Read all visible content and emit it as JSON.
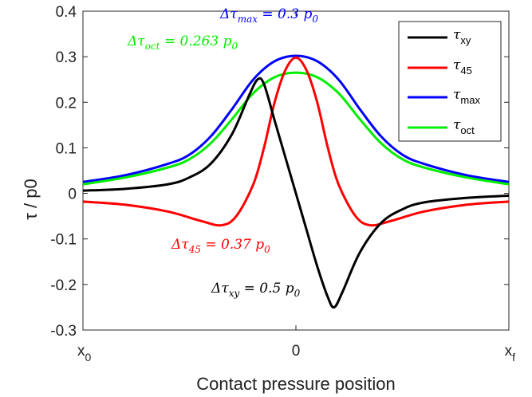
{
  "chart_data": {
    "type": "line",
    "xlabel": "Contact pressure position",
    "ylabel": "τ / p0",
    "x_ticks": [
      {
        "x": -1,
        "label": "x",
        "sub": "0"
      },
      {
        "x": 0,
        "label": "0",
        "sub": ""
      },
      {
        "x": 1,
        "label": "x",
        "sub": "f"
      }
    ],
    "xlim": [
      -1,
      1
    ],
    "ylim": [
      -0.3,
      0.4
    ],
    "y_ticks": [
      "-0.3",
      "-0.2",
      "-0.1",
      "0",
      "0.1",
      "0.2",
      "0.3",
      "0.4"
    ],
    "y_tick_values": [
      -0.3,
      -0.2,
      -0.1,
      0,
      0.1,
      0.2,
      0.3,
      0.4
    ],
    "grid": false,
    "legend_position": "top-right",
    "series": [
      {
        "name": "τxy",
        "name_main": "τ",
        "name_sub": "xy",
        "color": "#000000",
        "points": [
          [
            -1,
            0.006
          ],
          [
            -0.8,
            0.01
          ],
          [
            -0.6,
            0.02
          ],
          [
            -0.5,
            0.035
          ],
          [
            -0.4,
            0.065
          ],
          [
            -0.3,
            0.13
          ],
          [
            -0.22,
            0.215
          ],
          [
            -0.18,
            0.25
          ],
          [
            -0.15,
            0.24
          ],
          [
            -0.1,
            0.16
          ],
          [
            -0.05,
            0.08
          ],
          [
            0,
            0.0
          ],
          [
            0.05,
            -0.08
          ],
          [
            0.1,
            -0.16
          ],
          [
            0.15,
            -0.228
          ],
          [
            0.18,
            -0.25
          ],
          [
            0.22,
            -0.215
          ],
          [
            0.3,
            -0.13
          ],
          [
            0.4,
            -0.065
          ],
          [
            0.5,
            -0.035
          ],
          [
            0.6,
            -0.02
          ],
          [
            0.8,
            -0.01
          ],
          [
            1,
            -0.005
          ]
        ]
      },
      {
        "name": "τ45",
        "name_main": "τ",
        "name_sub": "45",
        "color": "#ff0000",
        "points": [
          [
            -1,
            -0.018
          ],
          [
            -0.8,
            -0.025
          ],
          [
            -0.6,
            -0.04
          ],
          [
            -0.45,
            -0.06
          ],
          [
            -0.35,
            -0.07
          ],
          [
            -0.28,
            -0.05
          ],
          [
            -0.2,
            0.02
          ],
          [
            -0.15,
            0.1
          ],
          [
            -0.1,
            0.2
          ],
          [
            -0.05,
            0.27
          ],
          [
            0,
            0.298
          ],
          [
            0.05,
            0.27
          ],
          [
            0.1,
            0.2
          ],
          [
            0.15,
            0.1
          ],
          [
            0.2,
            0.02
          ],
          [
            0.28,
            -0.05
          ],
          [
            0.35,
            -0.07
          ],
          [
            0.45,
            -0.06
          ],
          [
            0.6,
            -0.04
          ],
          [
            0.8,
            -0.025
          ],
          [
            1,
            -0.018
          ]
        ]
      },
      {
        "name": "τmax",
        "name_main": "τ",
        "name_sub": "max",
        "color": "#0000ff",
        "points": [
          [
            -1,
            0.025
          ],
          [
            -0.8,
            0.04
          ],
          [
            -0.6,
            0.065
          ],
          [
            -0.5,
            0.085
          ],
          [
            -0.4,
            0.125
          ],
          [
            -0.3,
            0.185
          ],
          [
            -0.2,
            0.25
          ],
          [
            -0.1,
            0.29
          ],
          [
            0,
            0.302
          ],
          [
            0.1,
            0.29
          ],
          [
            0.2,
            0.25
          ],
          [
            0.3,
            0.185
          ],
          [
            0.4,
            0.125
          ],
          [
            0.5,
            0.085
          ],
          [
            0.6,
            0.065
          ],
          [
            0.8,
            0.04
          ],
          [
            1,
            0.025
          ]
        ]
      },
      {
        "name": "τoct",
        "name_main": "τ",
        "name_sub": "oct",
        "color": "#00ee00",
        "points": [
          [
            -1,
            0.02
          ],
          [
            -0.8,
            0.035
          ],
          [
            -0.6,
            0.057
          ],
          [
            -0.5,
            0.075
          ],
          [
            -0.4,
            0.11
          ],
          [
            -0.3,
            0.163
          ],
          [
            -0.2,
            0.22
          ],
          [
            -0.1,
            0.255
          ],
          [
            0,
            0.265
          ],
          [
            0.1,
            0.255
          ],
          [
            0.2,
            0.22
          ],
          [
            0.3,
            0.163
          ],
          [
            0.4,
            0.11
          ],
          [
            0.5,
            0.075
          ],
          [
            0.6,
            0.057
          ],
          [
            0.8,
            0.035
          ],
          [
            1,
            0.02
          ]
        ]
      }
    ],
    "annotations": [
      {
        "prefix": "Δτ",
        "sub": "max",
        "suffix": " = 0.3 p",
        "psub": "0",
        "color": "#0000ff"
      },
      {
        "prefix": "Δτ",
        "sub": "oct",
        "suffix": " = 0.263 p",
        "psub": "0",
        "color": "#00ee00"
      },
      {
        "prefix": "Δτ",
        "sub": "45",
        "suffix": " = 0.37 p",
        "psub": "0",
        "color": "#ff0000"
      },
      {
        "prefix": "Δτ",
        "sub": "xy",
        "suffix": " = 0.5 p",
        "psub": "0",
        "color": "#000000"
      }
    ]
  }
}
